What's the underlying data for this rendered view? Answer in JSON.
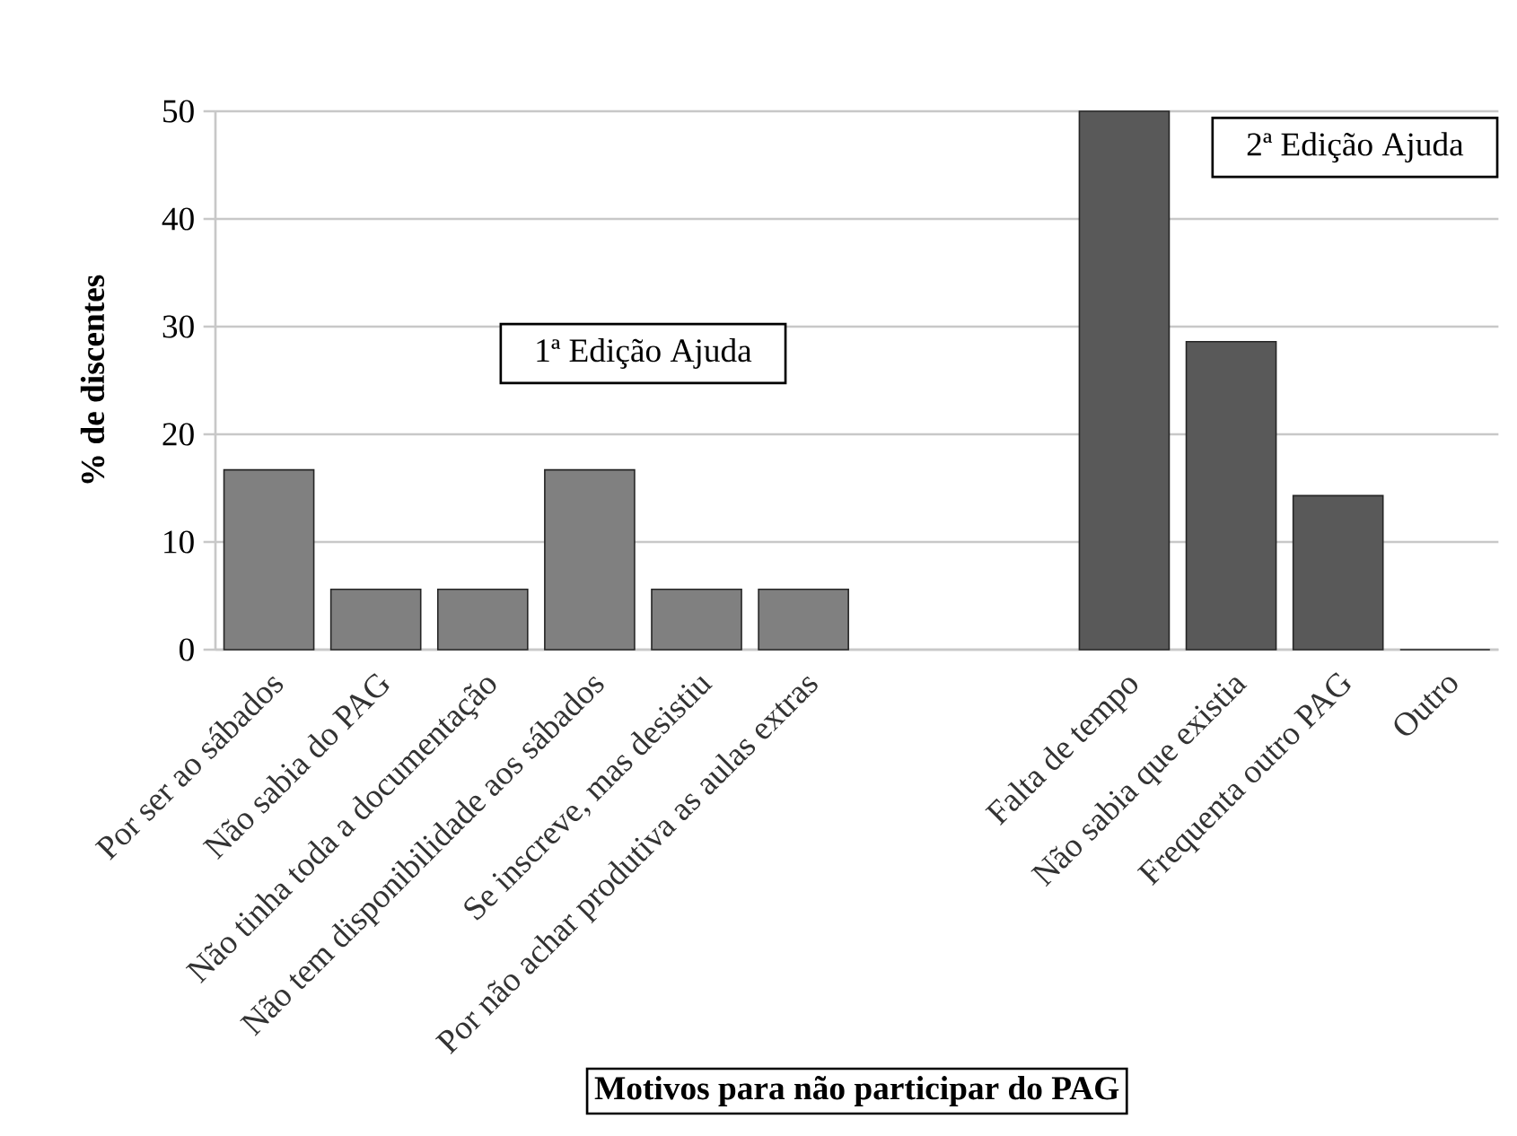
{
  "chart_data": {
    "type": "bar",
    "xlabel": "Motivos para não participar do PAG",
    "ylabel": "% de discentes",
    "categories": [
      "Por ser ao sábados",
      "Não sabia do PAG",
      "Não tinha toda a documentação",
      "Não tem disponibilidade aos sábados",
      "Se inscreve, mas desistiu",
      "Por não achar produtiva as aulas extras",
      null,
      null,
      "Falta de tempo",
      "Não sabia que existia",
      "Frequenta outro PAG",
      "Outro"
    ],
    "values": [
      16.7,
      5.6,
      5.6,
      16.7,
      5.6,
      5.6,
      null,
      null,
      50,
      28.6,
      14.3,
      0
    ],
    "colors": [
      "#808080",
      "#808080",
      "#808080",
      "#808080",
      "#808080",
      "#808080",
      null,
      null,
      "#595959",
      "#595959",
      "#595959",
      "#595959"
    ],
    "ylim": [
      0,
      50
    ],
    "yticks": [
      0,
      10,
      20,
      30,
      40,
      50
    ],
    "grid": "y",
    "annotations": [
      "1ª Edição Ajuda",
      "2ª Edição Ajuda"
    ]
  }
}
